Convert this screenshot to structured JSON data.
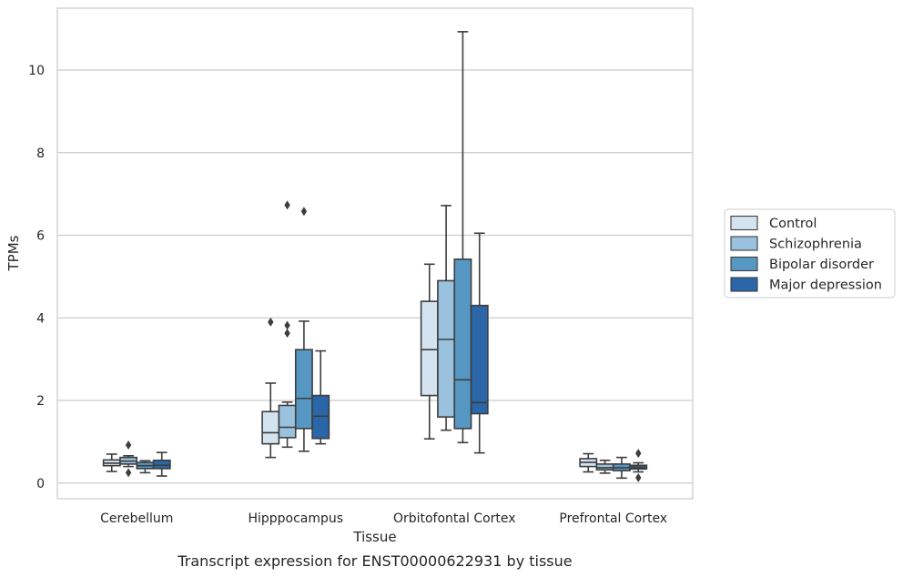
{
  "chart_data": {
    "type": "box",
    "caption": "Transcript expression for ENST00000622931 by tissue",
    "xlabel": "Tissue",
    "ylabel": "TPMs",
    "ylim": [
      -0.38,
      11.5
    ],
    "yticks": [
      0,
      2,
      4,
      6,
      8,
      10
    ],
    "grid": "horizontal",
    "legend_position": "right",
    "categories": [
      "Cerebellum",
      "Hipppocampus",
      "Orbitofontal Cortex",
      "Prefrontal Cortex"
    ],
    "series": [
      {
        "name": "Control",
        "color": "#d3e3f0",
        "boxes": [
          {
            "whislo": 0.28,
            "q1": 0.42,
            "med": 0.48,
            "q3": 0.56,
            "whishi": 0.7,
            "fliers": []
          },
          {
            "whislo": 0.62,
            "q1": 0.95,
            "med": 1.22,
            "q3": 1.73,
            "whishi": 2.42,
            "fliers": [
              3.9
            ]
          },
          {
            "whislo": 1.07,
            "q1": 2.12,
            "med": 3.23,
            "q3": 4.4,
            "whishi": 5.3,
            "fliers": []
          },
          {
            "whislo": 0.27,
            "q1": 0.4,
            "med": 0.5,
            "q3": 0.59,
            "whishi": 0.71,
            "fliers": []
          }
        ]
      },
      {
        "name": "Schizophrenia",
        "color": "#9ac2de",
        "boxes": [
          {
            "whislo": 0.4,
            "q1": 0.46,
            "med": 0.53,
            "q3": 0.62,
            "whishi": 0.66,
            "fliers": [
              0.92,
              0.25
            ]
          },
          {
            "whislo": 0.87,
            "q1": 1.1,
            "med": 1.35,
            "q3": 1.88,
            "whishi": 1.96,
            "fliers": [
              6.73,
              3.82,
              3.63
            ]
          },
          {
            "whislo": 1.28,
            "q1": 1.6,
            "med": 3.48,
            "q3": 4.9,
            "whishi": 6.72,
            "fliers": []
          },
          {
            "whislo": 0.24,
            "q1": 0.32,
            "med": 0.37,
            "q3": 0.46,
            "whishi": 0.55,
            "fliers": []
          }
        ]
      },
      {
        "name": "Bipolar disorder",
        "color": "#5697c4",
        "boxes": [
          {
            "whislo": 0.25,
            "q1": 0.35,
            "med": 0.42,
            "q3": 0.5,
            "whishi": 0.54,
            "fliers": []
          },
          {
            "whislo": 0.77,
            "q1": 1.32,
            "med": 2.05,
            "q3": 3.23,
            "whishi": 3.92,
            "fliers": [
              6.58
            ]
          },
          {
            "whislo": 0.98,
            "q1": 1.32,
            "med": 2.5,
            "q3": 5.42,
            "whishi": 10.93,
            "fliers": []
          },
          {
            "whislo": 0.12,
            "q1": 0.3,
            "med": 0.37,
            "q3": 0.46,
            "whishi": 0.62,
            "fliers": []
          }
        ]
      },
      {
        "name": "Major depression",
        "color": "#2a66a8",
        "boxes": [
          {
            "whislo": 0.17,
            "q1": 0.35,
            "med": 0.43,
            "q3": 0.55,
            "whishi": 0.74,
            "fliers": []
          },
          {
            "whislo": 0.95,
            "q1": 1.08,
            "med": 1.62,
            "q3": 2.12,
            "whishi": 3.2,
            "fliers": []
          },
          {
            "whislo": 0.73,
            "q1": 1.68,
            "med": 1.95,
            "q3": 4.3,
            "whishi": 6.05,
            "fliers": []
          },
          {
            "whislo": 0.27,
            "q1": 0.34,
            "med": 0.38,
            "q3": 0.43,
            "whishi": 0.49,
            "fliers": [
              0.72,
              0.13
            ]
          }
        ]
      }
    ]
  }
}
